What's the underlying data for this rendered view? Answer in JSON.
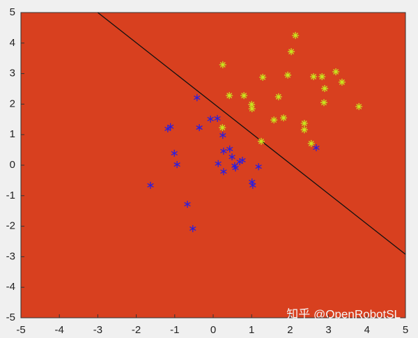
{
  "chart_data": {
    "type": "scatter",
    "watermark": "知乎 @OpenRobotSL",
    "background": "#d8401f",
    "xlim": [
      -5,
      5
    ],
    "ylim": [
      -5,
      5
    ],
    "xticks": [
      -5,
      -4,
      -3,
      -2,
      -1,
      0,
      1,
      2,
      3,
      4,
      5
    ],
    "yticks": [
      -5,
      -4,
      -3,
      -2,
      -1,
      0,
      1,
      2,
      3,
      4,
      5
    ],
    "boundary": {
      "color": "#111111",
      "x": [
        -3,
        5
      ],
      "values": [
        5,
        -2.92
      ]
    },
    "series": [
      {
        "color": "#c8e61e",
        "marker": "plus-x",
        "x": [
          2.14,
          2.03,
          0.25,
          3.19,
          2.61,
          2.83,
          1.29,
          1.94,
          3.35,
          2.9,
          0.42,
          0.8,
          1.7,
          1.0,
          1.01,
          2.88,
          3.79,
          1.83,
          1.58,
          2.37,
          2.37,
          0.24,
          1.25,
          2.55
        ],
        "values": [
          4.25,
          3.72,
          3.29,
          3.06,
          2.9,
          2.9,
          2.88,
          2.95,
          2.72,
          2.51,
          2.28,
          2.28,
          2.24,
          1.99,
          1.85,
          2.05,
          1.92,
          1.55,
          1.48,
          1.37,
          1.16,
          1.23,
          0.78,
          0.71
        ]
      },
      {
        "color": "#2a1ee0",
        "marker": "asterisk",
        "x": [
          -0.42,
          -1.11,
          -1.18,
          -0.36,
          -0.07,
          0.11,
          0.25,
          0.43,
          0.27,
          0.49,
          -1.01,
          -0.94,
          0.13,
          0.76,
          0.69,
          0.56,
          0.58,
          1.18,
          0.27,
          1.01,
          1.03,
          2.68,
          -1.63,
          -0.67,
          -0.53
        ],
        "values": [
          2.21,
          1.26,
          1.19,
          1.23,
          1.51,
          1.53,
          0.98,
          0.53,
          0.46,
          0.27,
          0.39,
          0.02,
          0.05,
          0.16,
          0.11,
          -0.02,
          -0.09,
          -0.05,
          -0.21,
          -0.55,
          -0.66,
          0.57,
          -0.66,
          -1.28,
          -2.08
        ]
      }
    ]
  }
}
